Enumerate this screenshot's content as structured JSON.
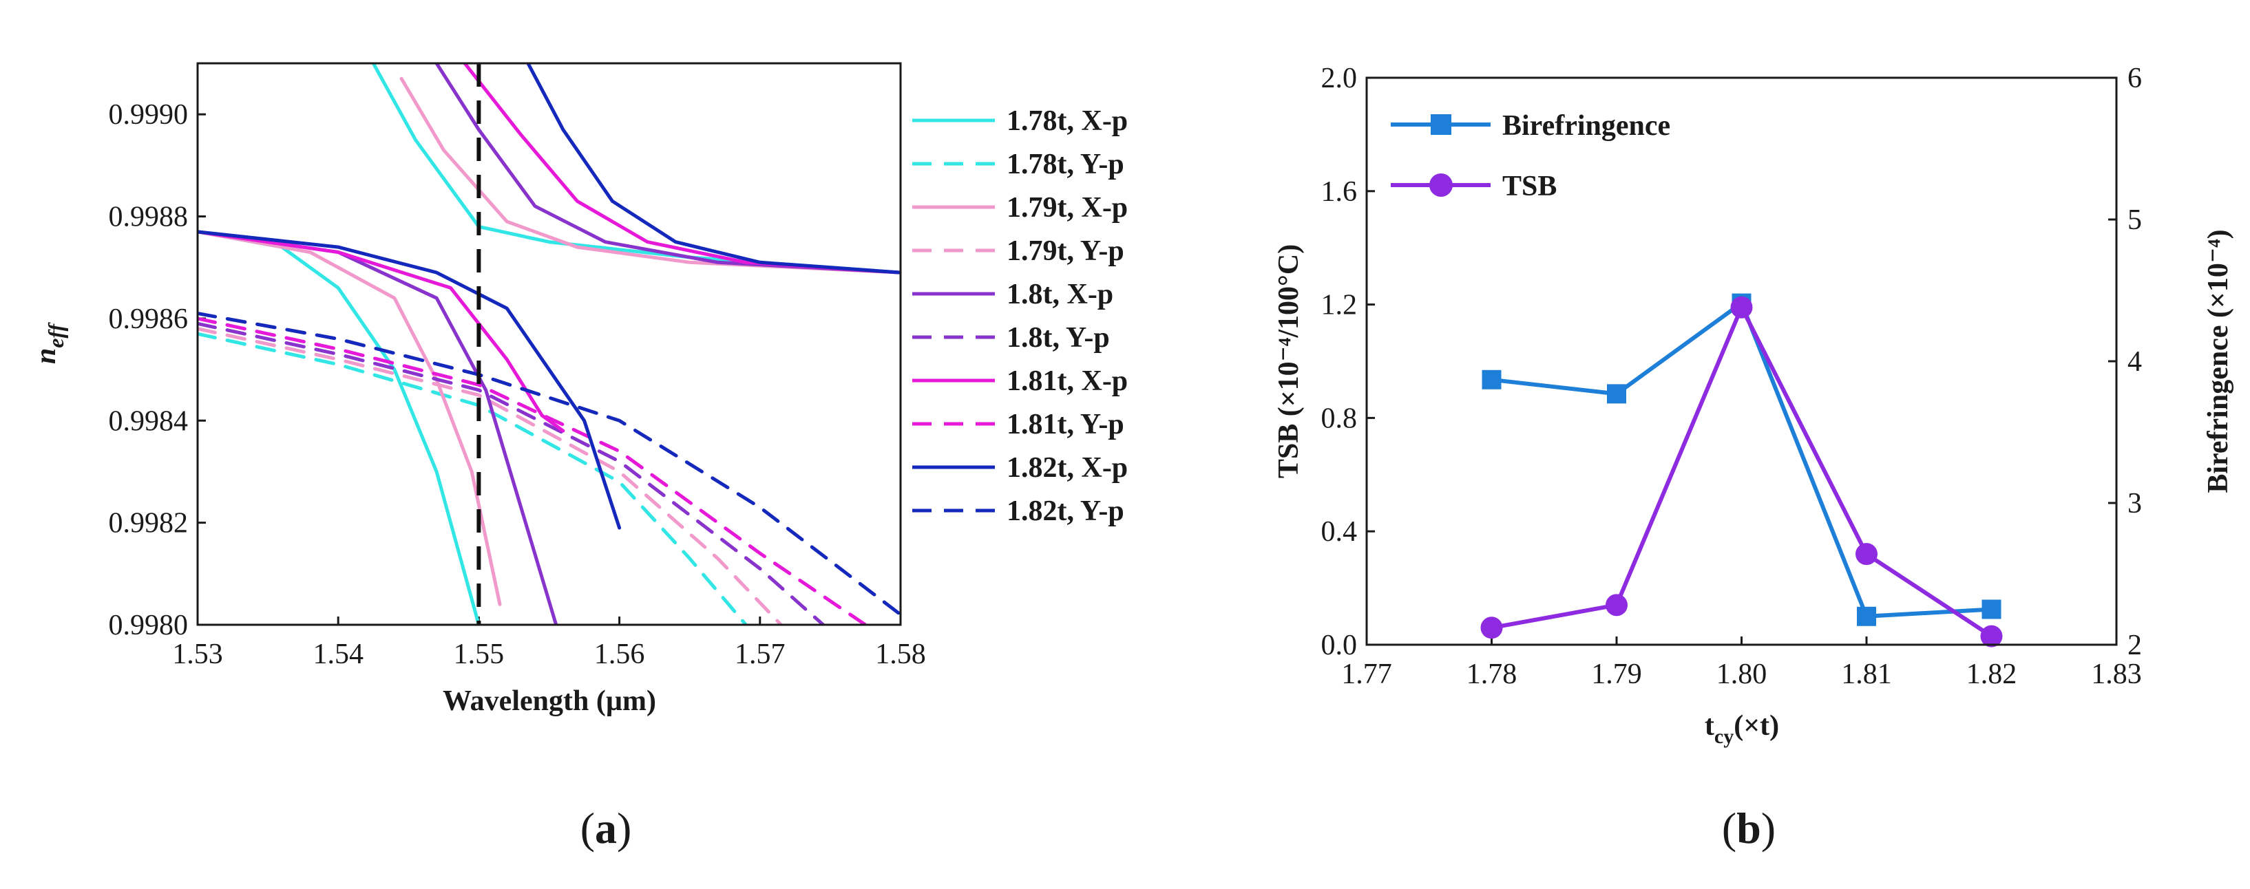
{
  "colors": {
    "c178": "#33E6E6",
    "c179": "#F299CC",
    "c180": "#8833CC",
    "c181": "#E619D9",
    "c182": "#1428BB",
    "birefringence": "#1E7FD8",
    "tsb": "#8E2BE0"
  },
  "chart_data": [
    {
      "id": "a",
      "type": "line",
      "panel_label": "a",
      "xlabel": "Wavelength (µm)",
      "ylabel": "n",
      "ylabel_sub": "eff",
      "xlim": [
        1.53,
        1.58
      ],
      "ylim": [
        0.998,
        0.9991
      ],
      "xticks": [
        "1.53",
        "1.54",
        "1.55",
        "1.56",
        "1.57",
        "1.58"
      ],
      "yticks": [
        "0.9980",
        "0.9982",
        "0.9984",
        "0.9986",
        "0.9988",
        "0.9990"
      ],
      "vline_x": 1.55,
      "series": [
        {
          "name": "1.78t, X-p",
          "color_key": "c178",
          "dash": false,
          "x": [
            1.53,
            1.536,
            1.54,
            1.544,
            1.547,
            1.55
          ],
          "y": [
            0.99877,
            0.99874,
            0.99866,
            0.9985,
            0.9983,
            0.998
          ]
        },
        {
          "name": "1.78t, X-p",
          "color_key": "c178",
          "dash": false,
          "x": [
            1.5425,
            1.5455,
            1.55,
            1.555,
            1.565,
            1.58
          ],
          "y": [
            0.9991,
            0.99895,
            0.99878,
            0.99875,
            0.99872,
            0.99869
          ]
        },
        {
          "name": "1.78t, Y-p",
          "color_key": "c178",
          "dash": true,
          "x": [
            1.53,
            1.54,
            1.55,
            1.56,
            1.565,
            1.569
          ],
          "y": [
            0.99857,
            0.99851,
            0.99843,
            0.99828,
            0.99813,
            0.998
          ]
        },
        {
          "name": "1.79t, X-p",
          "color_key": "c179",
          "dash": false,
          "x": [
            1.53,
            1.538,
            1.544,
            1.547,
            1.5495,
            1.5515
          ],
          "y": [
            0.99877,
            0.99873,
            0.99864,
            0.99848,
            0.9983,
            0.99804
          ]
        },
        {
          "name": "1.79t, X-p",
          "color_key": "c179",
          "dash": false,
          "x": [
            1.5445,
            1.5475,
            1.552,
            1.557,
            1.565,
            1.58
          ],
          "y": [
            0.99907,
            0.99893,
            0.99879,
            0.99874,
            0.99871,
            0.99869
          ]
        },
        {
          "name": "1.79t, Y-p",
          "color_key": "c179",
          "dash": true,
          "x": [
            1.53,
            1.54,
            1.55,
            1.56,
            1.567,
            1.5715
          ],
          "y": [
            0.99858,
            0.99852,
            0.99845,
            0.9983,
            0.99813,
            0.998
          ]
        },
        {
          "name": "1.8t, X-p",
          "color_key": "c180",
          "dash": false,
          "x": [
            1.53,
            1.54,
            1.547,
            1.5505,
            1.553,
            1.5555
          ],
          "y": [
            0.99877,
            0.99873,
            0.99864,
            0.99846,
            0.99823,
            0.998
          ]
        },
        {
          "name": "1.8t, X-p",
          "color_key": "c180",
          "dash": false,
          "x": [
            1.547,
            1.55,
            1.554,
            1.559,
            1.567,
            1.58
          ],
          "y": [
            0.9991,
            0.99897,
            0.99882,
            0.99875,
            0.99871,
            0.99869
          ]
        },
        {
          "name": "1.8t, Y-p",
          "color_key": "c180",
          "dash": true,
          "x": [
            1.53,
            1.54,
            1.55,
            1.56,
            1.57,
            1.5745
          ],
          "y": [
            0.99859,
            0.99853,
            0.99846,
            0.99832,
            0.99811,
            0.998
          ]
        },
        {
          "name": "1.81t, X-p",
          "color_key": "c181",
          "dash": false,
          "x": [
            1.53,
            1.54,
            1.548,
            1.552,
            1.5545,
            1.556
          ],
          "y": [
            0.99877,
            0.99873,
            0.99866,
            0.99852,
            0.99841,
            0.99838
          ]
        },
        {
          "name": "1.81t, X-p",
          "color_key": "c181",
          "dash": false,
          "x": [
            1.549,
            1.553,
            1.557,
            1.562,
            1.569,
            1.58
          ],
          "y": [
            0.9991,
            0.99896,
            0.99883,
            0.99875,
            0.99871,
            0.99869
          ]
        },
        {
          "name": "1.81t, Y-p",
          "color_key": "c181",
          "dash": true,
          "x": [
            1.53,
            1.54,
            1.55,
            1.56,
            1.57,
            1.5775
          ],
          "y": [
            0.9986,
            0.99854,
            0.99847,
            0.99834,
            0.99814,
            0.998
          ]
        },
        {
          "name": "1.82t, X-p",
          "color_key": "c182",
          "dash": false,
          "x": [
            1.53,
            1.54,
            1.547,
            1.552,
            1.5575,
            1.56
          ],
          "y": [
            0.99877,
            0.99874,
            0.99869,
            0.99862,
            0.9984,
            0.99819
          ]
        },
        {
          "name": "1.82t, X-p",
          "color_key": "c182",
          "dash": false,
          "x": [
            1.5535,
            1.556,
            1.5595,
            1.564,
            1.57,
            1.58
          ],
          "y": [
            0.9991,
            0.99897,
            0.99883,
            0.99875,
            0.99871,
            0.99869
          ]
        },
        {
          "name": "1.82t, Y-p",
          "color_key": "c182",
          "dash": true,
          "x": [
            1.53,
            1.54,
            1.55,
            1.56,
            1.57,
            1.58
          ],
          "y": [
            0.99861,
            0.99856,
            0.99849,
            0.9984,
            0.99823,
            0.99802
          ]
        }
      ],
      "legend": [
        {
          "label": "1.78t, X-p",
          "color_key": "c178",
          "dash": false
        },
        {
          "label": "1.78t, Y-p",
          "color_key": "c178",
          "dash": true
        },
        {
          "label": "1.79t, X-p",
          "color_key": "c179",
          "dash": false
        },
        {
          "label": "1.79t, Y-p",
          "color_key": "c179",
          "dash": true
        },
        {
          "label": "1.8t, X-p",
          "color_key": "c180",
          "dash": false
        },
        {
          "label": "1.8t, Y-p",
          "color_key": "c180",
          "dash": true
        },
        {
          "label": "1.81t, X-p",
          "color_key": "c181",
          "dash": false
        },
        {
          "label": "1.81t, Y-p",
          "color_key": "c181",
          "dash": true
        },
        {
          "label": "1.82t, X-p",
          "color_key": "c182",
          "dash": false
        },
        {
          "label": "1.82t, Y-p",
          "color_key": "c182",
          "dash": true
        }
      ]
    },
    {
      "id": "b",
      "type": "line",
      "panel_label": "b",
      "xlabel": "t",
      "xlabel_sub": "cy",
      "xlabel_suffix": "(×t)",
      "ylabel": "TSB (×10⁻⁴/100°C)",
      "y2label": "Birefringence (×10⁻⁴)",
      "xlim": [
        1.77,
        1.83
      ],
      "ylim": [
        0.0,
        2.0
      ],
      "y2lim": [
        2,
        6
      ],
      "xticks": [
        "1.77",
        "1.78",
        "1.79",
        "1.80",
        "1.81",
        "1.82",
        "1.83"
      ],
      "yticks": [
        "0.0",
        "0.4",
        "0.8",
        "1.2",
        "1.6",
        "2.0"
      ],
      "y2ticks": [
        "2",
        "3",
        "4",
        "5",
        "6"
      ],
      "series": [
        {
          "name": "Birefringence",
          "color_key": "birefringence",
          "marker": "square",
          "axis": "right",
          "x": [
            1.78,
            1.79,
            1.8,
            1.81,
            1.82
          ],
          "y": [
            3.87,
            3.77,
            4.41,
            2.2,
            2.25
          ]
        },
        {
          "name": "TSB",
          "color_key": "tsb",
          "marker": "circle",
          "axis": "left",
          "x": [
            1.78,
            1.79,
            1.8,
            1.81,
            1.82
          ],
          "y": [
            0.06,
            0.14,
            1.19,
            0.32,
            0.03
          ]
        }
      ]
    }
  ]
}
